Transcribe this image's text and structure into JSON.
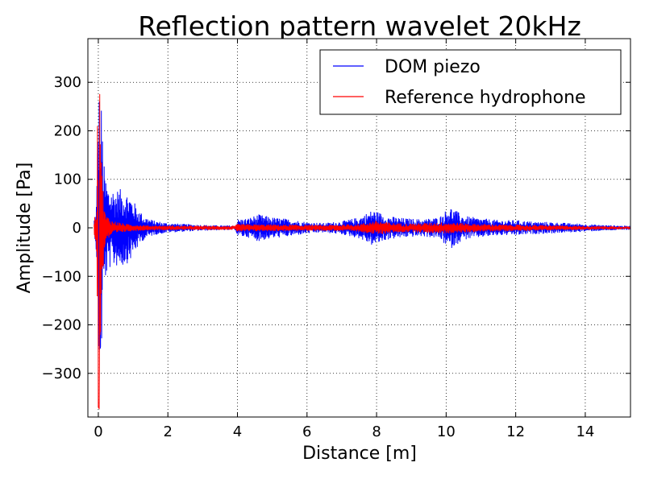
{
  "chart_data": {
    "type": "line",
    "title": "Reflection pattern wavelet 20kHz",
    "xlabel": "Distance [m]",
    "ylabel": "Amplitude [Pa]",
    "xlim": [
      -0.3,
      15.3
    ],
    "ylim": [
      -390,
      390
    ],
    "xticks": [
      0,
      2,
      4,
      6,
      8,
      10,
      12,
      14
    ],
    "yticks": [
      -300,
      -200,
      -100,
      0,
      100,
      200,
      300
    ],
    "xtick_labels": [
      "0",
      "2",
      "4",
      "6",
      "8",
      "10",
      "12",
      "14"
    ],
    "ytick_labels": [
      "−300",
      "−200",
      "−100",
      "0",
      "100",
      "200",
      "300"
    ],
    "grid": true,
    "legend_position": "top-right",
    "series": [
      {
        "name": "DOM piezo",
        "color": "#0000ff",
        "envelope": [
          [
            -0.1,
            20
          ],
          [
            -0.05,
            60
          ],
          [
            0.0,
            295
          ],
          [
            0.05,
            280
          ],
          [
            0.1,
            250
          ],
          [
            0.15,
            140
          ],
          [
            0.2,
            110
          ],
          [
            0.3,
            85
          ],
          [
            0.5,
            80
          ],
          [
            0.7,
            80
          ],
          [
            0.9,
            70
          ],
          [
            1.1,
            45
          ],
          [
            1.3,
            25
          ],
          [
            1.6,
            15
          ],
          [
            2.0,
            10
          ],
          [
            2.5,
            8
          ],
          [
            3.0,
            6
          ],
          [
            3.5,
            5
          ],
          [
            3.95,
            5
          ],
          [
            4.0,
            18
          ],
          [
            4.3,
            20
          ],
          [
            4.6,
            28
          ],
          [
            5.0,
            22
          ],
          [
            5.5,
            18
          ],
          [
            6.0,
            12
          ],
          [
            6.5,
            10
          ],
          [
            7.0,
            14
          ],
          [
            7.5,
            22
          ],
          [
            7.9,
            38
          ],
          [
            8.3,
            25
          ],
          [
            8.8,
            20
          ],
          [
            9.3,
            18
          ],
          [
            9.8,
            22
          ],
          [
            10.1,
            45
          ],
          [
            10.5,
            25
          ],
          [
            11.0,
            20
          ],
          [
            11.5,
            16
          ],
          [
            12.0,
            16
          ],
          [
            12.5,
            13
          ],
          [
            13.0,
            12
          ],
          [
            13.5,
            10
          ],
          [
            14.0,
            8
          ],
          [
            14.5,
            6
          ],
          [
            15.3,
            4
          ]
        ]
      },
      {
        "name": "Reference hydrophone",
        "color": "#ff0000",
        "envelope": [
          [
            -0.1,
            25
          ],
          [
            -0.05,
            40
          ],
          [
            0.0,
            370
          ],
          [
            0.05,
            375
          ],
          [
            0.1,
            120
          ],
          [
            0.2,
            30
          ],
          [
            0.4,
            15
          ],
          [
            0.8,
            8
          ],
          [
            1.5,
            5
          ],
          [
            3.9,
            4
          ],
          [
            4.0,
            8
          ],
          [
            5.0,
            7
          ],
          [
            6.5,
            6
          ],
          [
            7.5,
            8
          ],
          [
            8.0,
            15
          ],
          [
            8.5,
            10
          ],
          [
            9.0,
            9
          ],
          [
            10.0,
            12
          ],
          [
            11.0,
            8
          ],
          [
            12.5,
            6
          ],
          [
            14.0,
            4
          ],
          [
            15.3,
            3
          ]
        ]
      }
    ]
  }
}
